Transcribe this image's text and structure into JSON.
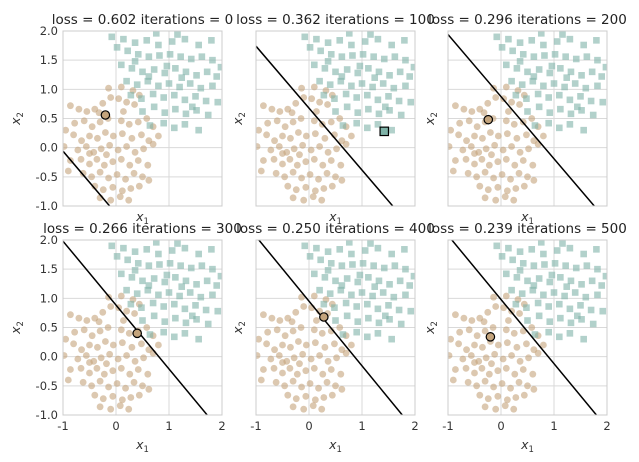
{
  "chart_data": {
    "type": "scatter",
    "x_ticks": [
      "-1",
      "0",
      "1",
      "2"
    ],
    "y_ticks": [
      "-1.0",
      "-0.5",
      "0.0",
      "0.5",
      "1.0",
      "1.5",
      "2.0"
    ],
    "xlim": [
      -1,
      2
    ],
    "ylim": [
      -1,
      2
    ],
    "xlabel": "x1",
    "ylabel": "x2",
    "grid": true,
    "colors": {
      "class0": "#c4a47c",
      "class1": "#7fb3a8",
      "line": "#000000"
    },
    "class0_points": [
      [
        -0.86,
        0.72
      ],
      [
        -0.7,
        0.66
      ],
      [
        -0.55,
        0.62
      ],
      [
        -0.4,
        0.66
      ],
      [
        -0.25,
        0.76
      ],
      [
        -0.1,
        0.86
      ],
      [
        0.05,
        0.84
      ],
      [
        0.2,
        0.78
      ],
      [
        0.35,
        0.74
      ],
      [
        -0.78,
        0.42
      ],
      [
        -0.6,
        0.46
      ],
      [
        -0.45,
        0.36
      ],
      [
        -0.3,
        0.44
      ],
      [
        -0.15,
        0.5
      ],
      [
        0.1,
        0.46
      ],
      [
        0.25,
        0.4
      ],
      [
        0.42,
        0.44
      ],
      [
        0.58,
        0.5
      ],
      [
        -0.95,
        0.3
      ],
      [
        -0.8,
        0.22
      ],
      [
        -0.65,
        0.12
      ],
      [
        -0.5,
        0.2
      ],
      [
        -0.35,
        0.16
      ],
      [
        -0.2,
        0.26
      ],
      [
        -0.05,
        0.2
      ],
      [
        0.12,
        0.24
      ],
      [
        0.3,
        0.16
      ],
      [
        0.48,
        0.22
      ],
      [
        0.62,
        0.12
      ],
      [
        -0.72,
        -0.04
      ],
      [
        -0.56,
        0.02
      ],
      [
        -0.42,
        -0.08
      ],
      [
        -0.28,
        -0.02
      ],
      [
        -0.12,
        0.04
      ],
      [
        0.04,
        -0.04
      ],
      [
        0.2,
        0.02
      ],
      [
        0.36,
        -0.08
      ],
      [
        0.52,
        -0.02
      ],
      [
        0.7,
        0.06
      ],
      [
        -0.86,
        -0.22
      ],
      [
        -0.66,
        -0.2
      ],
      [
        -0.5,
        -0.28
      ],
      [
        -0.36,
        -0.2
      ],
      [
        -0.22,
        -0.3
      ],
      [
        -0.06,
        -0.24
      ],
      [
        0.1,
        -0.2
      ],
      [
        0.26,
        -0.3
      ],
      [
        0.42,
        -0.22
      ],
      [
        0.6,
        -0.3
      ],
      [
        -0.62,
        -0.44
      ],
      [
        -0.46,
        -0.5
      ],
      [
        -0.3,
        -0.42
      ],
      [
        -0.14,
        -0.52
      ],
      [
        0.02,
        -0.46
      ],
      [
        0.18,
        -0.54
      ],
      [
        0.34,
        -0.44
      ],
      [
        0.5,
        -0.5
      ],
      [
        -0.4,
        -0.66
      ],
      [
        -0.24,
        -0.72
      ],
      [
        -0.06,
        -0.68
      ],
      [
        0.12,
        -0.74
      ],
      [
        0.28,
        -0.7
      ],
      [
        0.44,
        -0.66
      ],
      [
        -0.3,
        -0.86
      ],
      [
        -0.1,
        -0.9
      ],
      [
        0.08,
        -0.84
      ],
      [
        0.24,
        -0.9
      ],
      [
        -0.14,
        1.02
      ],
      [
        0.1,
        1.04
      ],
      [
        0.32,
        0.98
      ],
      [
        0.7,
        0.36
      ],
      [
        0.8,
        0.2
      ],
      [
        -0.98,
        0.02
      ],
      [
        -0.9,
        -0.4
      ],
      [
        -0.5,
        -0.1
      ],
      [
        -0.18,
        -0.12
      ],
      [
        0.62,
        -0.56
      ],
      [
        0.14,
        0.62
      ],
      [
        -0.32,
        0.6
      ],
      [
        0.44,
        0.9
      ]
    ],
    "class1_points": [
      [
        0.02,
        1.72
      ],
      [
        0.22,
        1.66
      ],
      [
        0.42,
        1.6
      ],
      [
        0.62,
        1.56
      ],
      [
        0.82,
        1.58
      ],
      [
        1.02,
        1.6
      ],
      [
        1.22,
        1.56
      ],
      [
        1.42,
        1.52
      ],
      [
        1.62,
        1.56
      ],
      [
        1.82,
        1.5
      ],
      [
        -0.08,
        1.9
      ],
      [
        0.14,
        1.86
      ],
      [
        0.36,
        1.8
      ],
      [
        0.58,
        1.84
      ],
      [
        0.8,
        1.76
      ],
      [
        1.06,
        1.82
      ],
      [
        1.3,
        1.86
      ],
      [
        1.56,
        1.76
      ],
      [
        1.8,
        1.84
      ],
      [
        0.1,
        1.42
      ],
      [
        0.3,
        1.36
      ],
      [
        0.5,
        1.3
      ],
      [
        0.72,
        1.34
      ],
      [
        0.92,
        1.28
      ],
      [
        1.12,
        1.36
      ],
      [
        1.32,
        1.3
      ],
      [
        1.52,
        1.24
      ],
      [
        1.72,
        1.3
      ],
      [
        1.9,
        1.22
      ],
      [
        0.2,
        1.14
      ],
      [
        0.4,
        1.08
      ],
      [
        0.6,
        1.14
      ],
      [
        0.8,
        1.06
      ],
      [
        1.0,
        1.1
      ],
      [
        1.2,
        1.04
      ],
      [
        1.4,
        1.1
      ],
      [
        1.6,
        1.02
      ],
      [
        1.82,
        1.06
      ],
      [
        0.28,
        0.9
      ],
      [
        0.48,
        0.84
      ],
      [
        0.7,
        0.92
      ],
      [
        0.9,
        0.86
      ],
      [
        1.1,
        0.9
      ],
      [
        1.3,
        0.82
      ],
      [
        1.5,
        0.88
      ],
      [
        1.7,
        0.8
      ],
      [
        1.92,
        0.78
      ],
      [
        0.5,
        0.62
      ],
      [
        0.72,
        0.7
      ],
      [
        0.92,
        0.6
      ],
      [
        1.12,
        0.66
      ],
      [
        1.32,
        0.58
      ],
      [
        1.52,
        0.64
      ],
      [
        1.74,
        0.56
      ],
      [
        0.64,
        0.38
      ],
      [
        0.9,
        0.42
      ],
      [
        1.1,
        0.34
      ],
      [
        1.3,
        0.4
      ],
      [
        1.56,
        0.3
      ],
      [
        0.76,
        1.96
      ],
      [
        1.16,
        1.94
      ],
      [
        0.96,
        1.4
      ],
      [
        1.24,
        1.2
      ],
      [
        0.62,
        1.22
      ],
      [
        1.44,
        0.7
      ],
      [
        0.36,
        1.48
      ],
      [
        1.98,
        1.38
      ]
    ],
    "panels": [
      {
        "title": "loss = 0.602 iterations = 0",
        "line": [
          [
            -1,
            -0.06
          ],
          [
            -0.12,
            -1
          ]
        ],
        "marker": "circle",
        "highlight": [
          -0.2,
          0.56
        ]
      },
      {
        "title": "loss = 0.362 iterations = 100",
        "line": [
          [
            -1,
            1.74
          ],
          [
            1.58,
            -1
          ]
        ],
        "marker": "square",
        "highlight": [
          1.42,
          0.28
        ]
      },
      {
        "title": "loss = 0.296 iterations = 200",
        "line": [
          [
            -1,
            1.94
          ],
          [
            1.76,
            -1
          ]
        ],
        "marker": "circle",
        "highlight": [
          -0.24,
          0.48
        ]
      },
      {
        "title": "loss = 0.266 iterations = 300",
        "line": [
          [
            -1,
            1.98
          ],
          [
            1.72,
            -1
          ]
        ],
        "marker": "circle",
        "highlight": [
          0.4,
          0.4
        ]
      },
      {
        "title": "loss = 0.250 iterations = 400",
        "line": [
          [
            -1,
            2.06
          ],
          [
            1.76,
            -1
          ]
        ],
        "marker": "circle",
        "highlight": [
          0.28,
          0.68
        ]
      },
      {
        "title": "loss = 0.239 iterations = 500",
        "line": [
          [
            -1,
            2.08
          ],
          [
            1.8,
            -1
          ]
        ],
        "marker": "circle",
        "highlight": [
          -0.2,
          0.34
        ]
      }
    ]
  }
}
